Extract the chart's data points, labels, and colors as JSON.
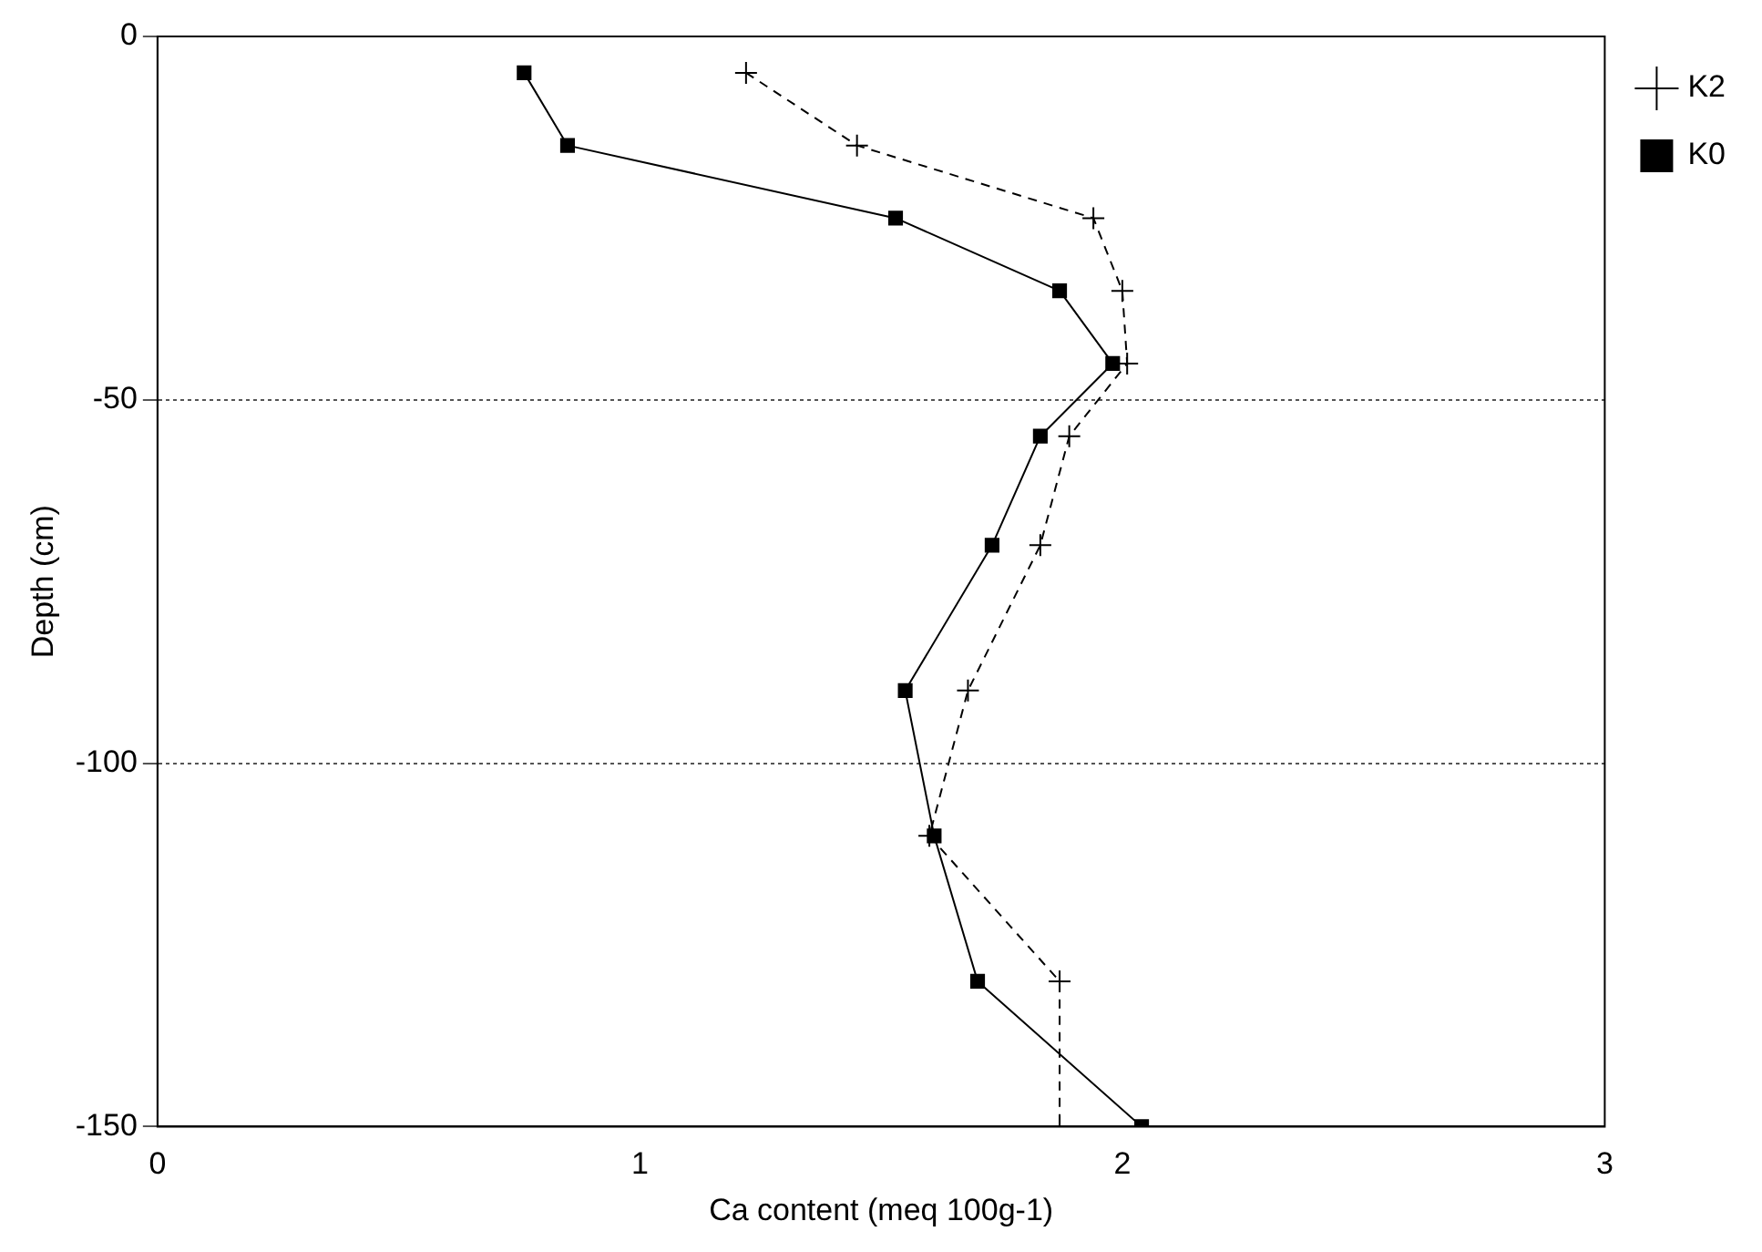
{
  "chart_data": {
    "type": "line",
    "xlabel": "Ca content (meq 100g-1)",
    "ylabel": "Depth (cm)",
    "xlim": [
      0,
      3
    ],
    "xticks": [
      0,
      1,
      2,
      3
    ],
    "ylim": [
      -150,
      0
    ],
    "yticks": [
      -150,
      -100,
      -50,
      0
    ],
    "grid": "y",
    "legend": "top right",
    "series": [
      {
        "name": "K0",
        "color": "#000000",
        "marker": "square",
        "line_style": "solid",
        "x": [
          0.76,
          0.85,
          1.53,
          1.87,
          1.98,
          1.83,
          1.73,
          1.55,
          1.61,
          1.7,
          2.04
        ],
        "values": [
          -5,
          -15,
          -25,
          -35,
          -45,
          -55,
          -70,
          -90,
          -110,
          -130,
          -150
        ]
      },
      {
        "name": "K2",
        "color": "#000000",
        "marker": "cross",
        "line_style": "dashed",
        "x": [
          1.22,
          1.45,
          1.94,
          2.0,
          2.01,
          1.89,
          1.83,
          1.68,
          1.6,
          1.87,
          1.87
        ],
        "values": [
          -5,
          -15,
          -25,
          -35,
          -45,
          -55,
          -70,
          -90,
          -110,
          -130,
          -150
        ]
      }
    ]
  }
}
